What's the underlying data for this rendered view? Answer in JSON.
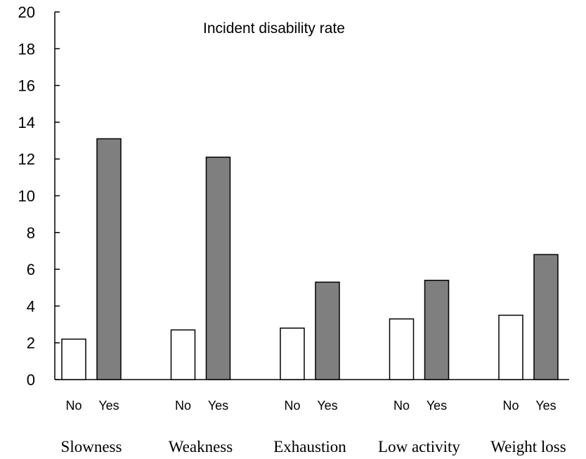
{
  "chart_data": {
    "type": "bar",
    "title": "Incident disability rate",
    "xlabel": "",
    "ylabel": "",
    "ylim": [
      0,
      20
    ],
    "yticks": [
      0,
      2,
      4,
      6,
      8,
      10,
      12,
      14,
      16,
      18,
      20
    ],
    "grid": false,
    "legend": "none",
    "categories": [
      "Slowness",
      "Weakness",
      "Exhaustion",
      "Low activity",
      "Weight loss"
    ],
    "subcategories": [
      "No",
      "Yes"
    ],
    "series": [
      {
        "values": [
          2.2,
          2.7,
          2.8,
          3.3,
          3.5
        ],
        "color": "#ffffff"
      },
      {
        "values": [
          13.1,
          12.1,
          5.3,
          5.4,
          6.8
        ],
        "color": "#7f7f7f"
      }
    ]
  }
}
